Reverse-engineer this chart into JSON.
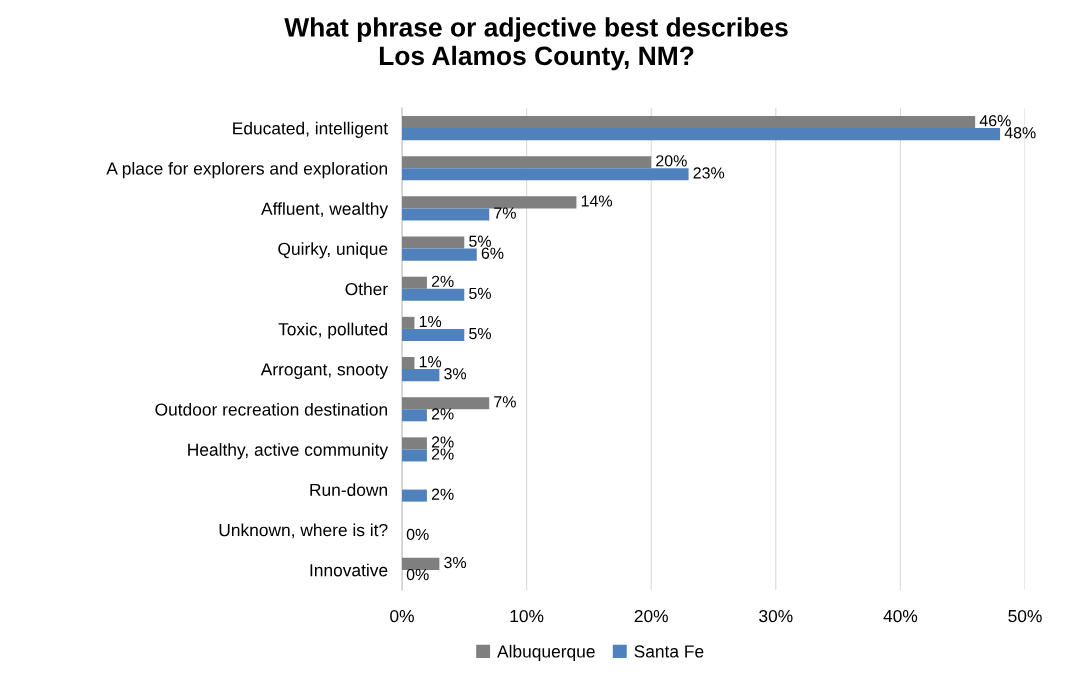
{
  "chart_data": {
    "type": "bar",
    "orientation": "horizontal",
    "title": "What phrase or adjective best describes\nLos Alamos County, NM?",
    "categories": [
      "Educated, intelligent",
      "A place for explorers and exploration",
      "Affluent, wealthy",
      "Quirky, unique",
      "Other",
      "Toxic, polluted",
      "Arrogant, snooty",
      "Outdoor recreation destination",
      "Healthy, active community",
      "Run-down",
      "Unknown, where is it?",
      "Innovative"
    ],
    "series": [
      {
        "name": "Albuquerque",
        "color": "#7f7f7f",
        "values": [
          46,
          20,
          14,
          5,
          2,
          1,
          1,
          7,
          2,
          null,
          null,
          3
        ],
        "value_labels": [
          "46%",
          "20%",
          "14%",
          "5%",
          "2%",
          "1%",
          "1%",
          "7%",
          "2%",
          null,
          null,
          "3%"
        ]
      },
      {
        "name": "Santa Fe",
        "color": "#4f81bd",
        "values": [
          48,
          23,
          7,
          6,
          5,
          5,
          3,
          2,
          2,
          2,
          0,
          0
        ],
        "value_labels": [
          "48%",
          "23%",
          "7%",
          "6%",
          "5%",
          "5%",
          "3%",
          "2%",
          "2%",
          "2%",
          "0%",
          "0%"
        ]
      }
    ],
    "xlim": [
      0,
      50
    ],
    "xticks": [
      {
        "value": 0,
        "label": "0%"
      },
      {
        "value": 10,
        "label": "10%"
      },
      {
        "value": 20,
        "label": "20%"
      },
      {
        "value": 30,
        "label": "30%"
      },
      {
        "value": 40,
        "label": "40%"
      },
      {
        "value": 50,
        "label": "50%"
      }
    ],
    "grid": "x",
    "legend": "bottom"
  }
}
